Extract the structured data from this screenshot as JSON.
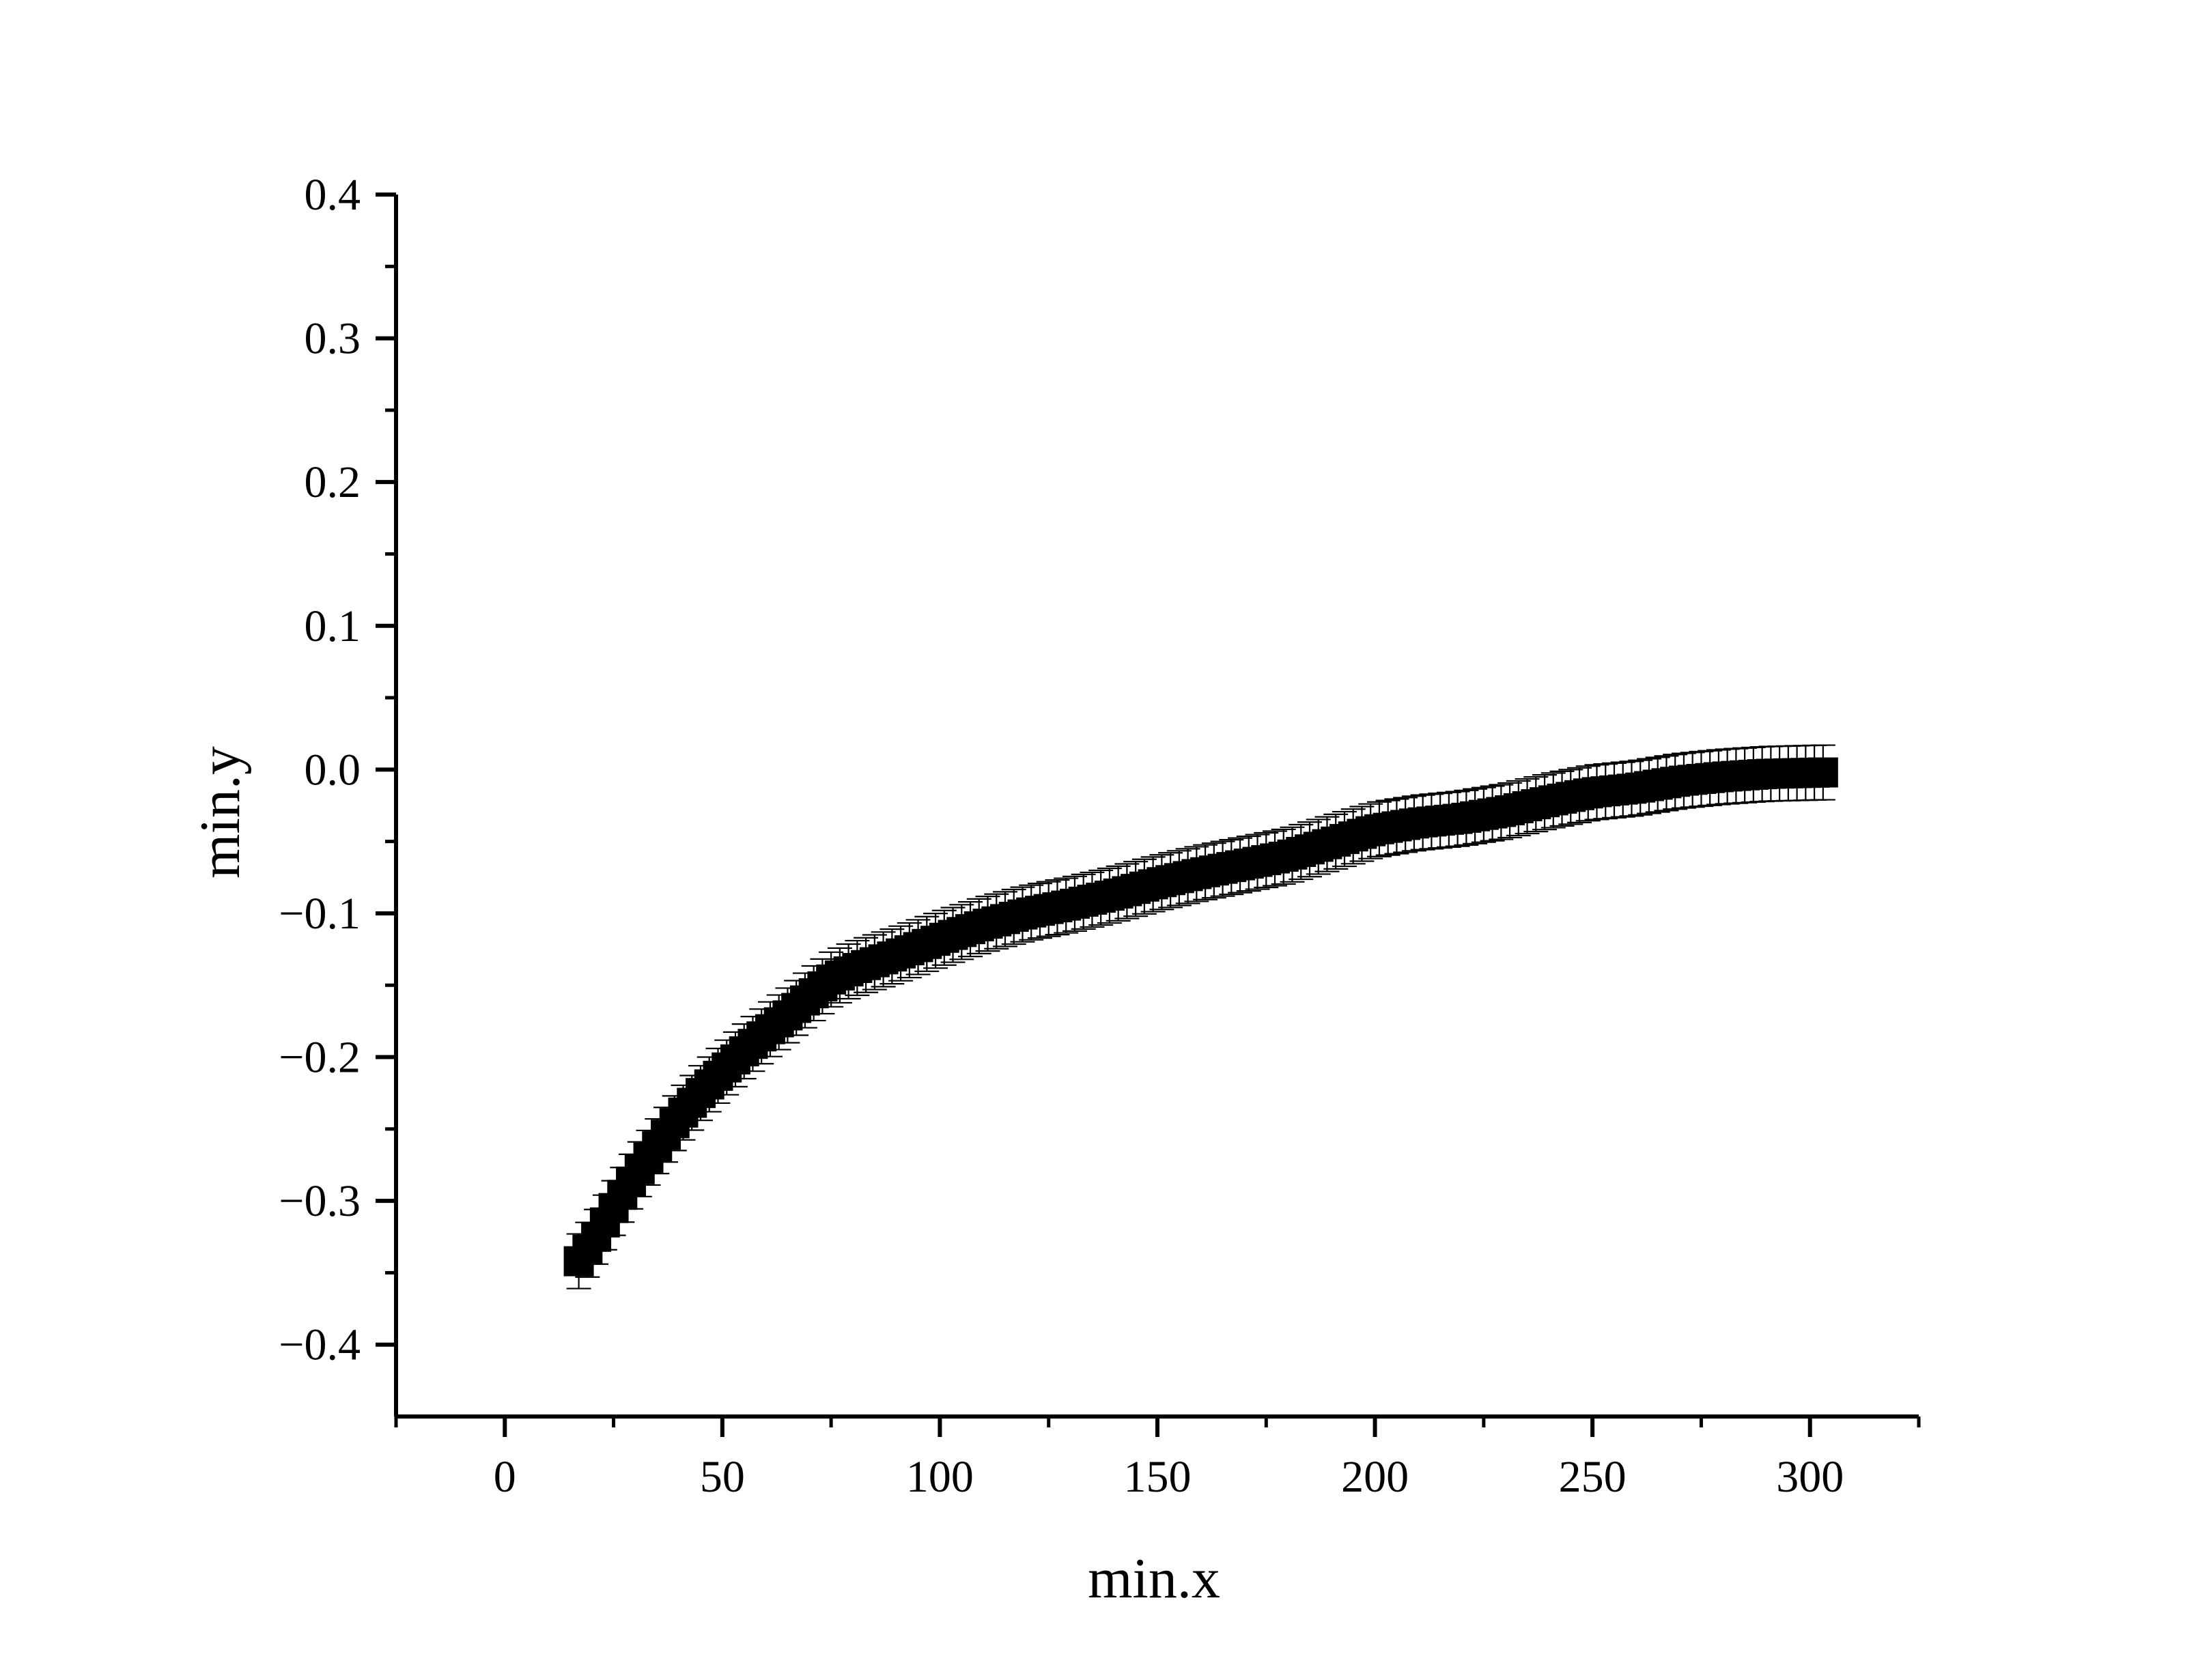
{
  "chart_data": {
    "type": "scatter",
    "title": "",
    "xlabel": "min.x",
    "ylabel": "min.y",
    "xlim": [
      -25,
      325
    ],
    "ylim": [
      -0.45,
      0.4
    ],
    "x_ticks": [
      0,
      50,
      100,
      150,
      200,
      250,
      300
    ],
    "x_tick_labels": [
      "0",
      "50",
      "100",
      "150",
      "200",
      "250",
      "300"
    ],
    "y_ticks": [
      0.4,
      0.3,
      0.2,
      0.1,
      0.0,
      -0.1,
      -0.2,
      -0.3,
      -0.4
    ],
    "y_tick_labels": [
      "0.4",
      "0.3",
      "0.2",
      "0.1",
      "0.0",
      "−0.1",
      "−0.2",
      "−0.3",
      "−0.4"
    ],
    "grid": false,
    "legend": "none",
    "series": [
      {
        "name": "min",
        "marker": "square",
        "color": "#000000",
        "x_start": 17,
        "x_end": 303,
        "x_step": 2,
        "anchor_points": [
          [
            17,
            -0.342
          ],
          [
            20,
            -0.33
          ],
          [
            25,
            -0.305
          ],
          [
            30,
            -0.282
          ],
          [
            35,
            -0.262
          ],
          [
            40,
            -0.242
          ],
          [
            45,
            -0.225
          ],
          [
            50,
            -0.21
          ],
          [
            55,
            -0.196
          ],
          [
            60,
            -0.183
          ],
          [
            65,
            -0.171
          ],
          [
            70,
            -0.158
          ],
          [
            75,
            -0.146
          ],
          [
            80,
            -0.139
          ],
          [
            90,
            -0.129
          ],
          [
            100,
            -0.118
          ],
          [
            110,
            -0.108
          ],
          [
            120,
            -0.1
          ],
          [
            130,
            -0.094
          ],
          [
            140,
            -0.087
          ],
          [
            150,
            -0.079
          ],
          [
            160,
            -0.072
          ],
          [
            170,
            -0.066
          ],
          [
            180,
            -0.06
          ],
          [
            190,
            -0.051
          ],
          [
            200,
            -0.042
          ],
          [
            210,
            -0.037
          ],
          [
            220,
            -0.034
          ],
          [
            230,
            -0.029
          ],
          [
            240,
            -0.022
          ],
          [
            250,
            -0.016
          ],
          [
            260,
            -0.013
          ],
          [
            270,
            -0.008
          ],
          [
            280,
            -0.005
          ],
          [
            290,
            -0.003
          ],
          [
            303,
            -0.002
          ]
        ],
        "error": 0.019
      }
    ]
  }
}
